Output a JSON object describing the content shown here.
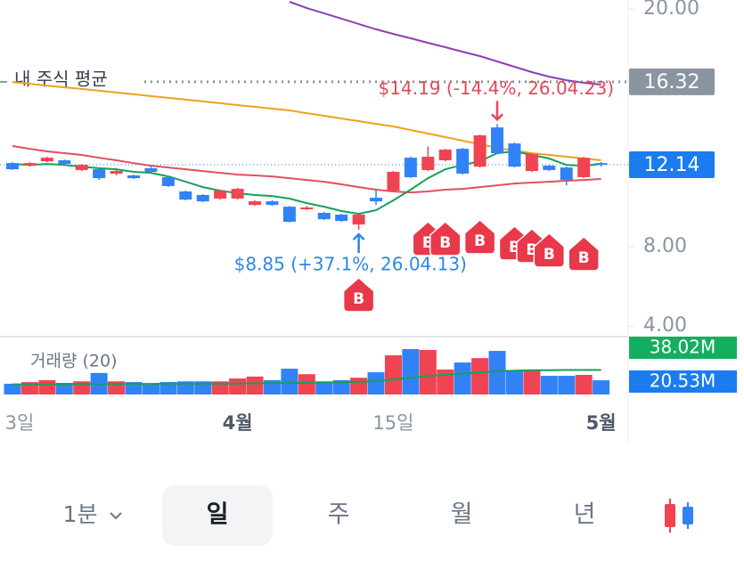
{
  "chart_data": {
    "type": "candlestick",
    "categories": [
      "3일",
      null,
      null,
      null,
      null,
      null,
      null,
      null,
      null,
      null,
      null,
      null,
      null,
      "4월",
      null,
      null,
      null,
      null,
      null,
      null,
      null,
      null,
      "15일",
      null,
      null,
      null,
      null,
      null,
      null,
      null,
      null,
      null,
      null,
      null,
      "5월"
    ],
    "open": [
      12.22,
      12.09,
      12.31,
      12.36,
      11.87,
      11.91,
      11.69,
      11.6,
      11.96,
      11.51,
      10.79,
      10.61,
      10.43,
      10.43,
      10.11,
      10.29,
      10.02,
      9.89,
      9.71,
      9.62,
      9.12,
      10.47,
      10.83,
      12.49,
      11.87,
      12.36,
      12.94,
      12.04,
      14.02,
      13.21,
      11.82,
      12.09,
      12.0,
      11.51,
      12.22
    ],
    "high": [
      12.27,
      12.27,
      12.54,
      12.4,
      12.18,
      11.96,
      11.87,
      11.64,
      12.04,
      11.55,
      10.83,
      10.65,
      10.88,
      10.97,
      10.34,
      10.34,
      10.06,
      10.06,
      9.76,
      9.66,
      9.66,
      10.88,
      11.82,
      12.54,
      13.06,
      12.94,
      12.99,
      13.66,
      14.19,
      13.26,
      12.72,
      12.13,
      12.04,
      12.54,
      12.27
    ],
    "low": [
      11.87,
      12.04,
      12.27,
      12.13,
      11.82,
      11.37,
      11.6,
      11.42,
      11.73,
      11.01,
      10.34,
      10.25,
      10.38,
      10.38,
      10.06,
      10.06,
      9.22,
      9.85,
      9.35,
      9.26,
      8.85,
      10.11,
      10.79,
      11.46,
      11.82,
      12.31,
      11.64,
      12.0,
      12.67,
      12.0,
      11.78,
      11.82,
      11.1,
      11.46,
      12.04
    ],
    "close": [
      11.91,
      12.22,
      12.49,
      12.18,
      12.13,
      11.46,
      11.82,
      11.46,
      11.78,
      11.06,
      10.38,
      10.29,
      10.83,
      10.92,
      10.29,
      10.11,
      9.26,
      9.98,
      9.39,
      9.3,
      9.62,
      10.29,
      11.78,
      11.51,
      12.54,
      12.9,
      11.69,
      13.62,
      12.72,
      12.04,
      12.67,
      11.87,
      11.37,
      12.49,
      12.14
    ],
    "up_color": "#f04452",
    "down_color": "#3182f6",
    "ylim": [
      3.6,
      20.45
    ],
    "yticks": [
      {
        "value": 4,
        "label": "4.00"
      },
      {
        "value": 8,
        "label": "8.00"
      },
      {
        "value": 20,
        "label": "20.00"
      }
    ],
    "moving_averages": [
      {
        "color": "#8e3fb4",
        "values": [
          null,
          null,
          null,
          null,
          null,
          null,
          null,
          null,
          null,
          null,
          null,
          null,
          null,
          null,
          null,
          null,
          20.36,
          20.04,
          19.78,
          19.51,
          19.24,
          18.97,
          18.74,
          18.52,
          18.29,
          18.07,
          17.84,
          17.62,
          17.35,
          17.08,
          16.81,
          16.58,
          16.4,
          16.27,
          16.18
        ]
      },
      {
        "color": "#f0a020",
        "values": [
          16.31,
          16.22,
          16.13,
          16.04,
          15.96,
          15.87,
          15.78,
          15.69,
          15.6,
          15.51,
          15.42,
          15.33,
          15.24,
          15.15,
          15.06,
          14.97,
          14.88,
          14.74,
          14.61,
          14.47,
          14.34,
          14.2,
          14.07,
          13.89,
          13.71,
          13.53,
          13.35,
          13.17,
          12.99,
          12.85,
          12.72,
          12.63,
          12.54,
          12.45,
          12.36
        ]
      },
      {
        "color": "#e0505f",
        "values": [
          13.08,
          12.94,
          12.81,
          12.72,
          12.63,
          12.49,
          12.36,
          12.22,
          12.09,
          12.0,
          11.91,
          11.82,
          11.73,
          11.64,
          11.6,
          11.55,
          11.46,
          11.37,
          11.28,
          11.15,
          11.01,
          10.88,
          10.79,
          10.74,
          10.79,
          10.88,
          10.92,
          11.01,
          11.1,
          11.19,
          11.24,
          11.28,
          11.33,
          11.37,
          11.42
        ]
      },
      {
        "color": "#17a05a",
        "values": [
          12.18,
          12.13,
          12.18,
          12.13,
          12.04,
          11.96,
          11.91,
          11.78,
          11.73,
          11.55,
          11.28,
          11.01,
          10.83,
          10.7,
          10.61,
          10.56,
          10.43,
          10.2,
          10.02,
          9.8,
          9.66,
          9.84,
          10.34,
          10.88,
          11.46,
          11.91,
          12.13,
          12.31,
          12.72,
          12.81,
          12.63,
          12.45,
          12.13,
          12.09,
          12.18
        ]
      }
    ],
    "average_price": {
      "name": "내 주식 평균",
      "value": 16.32,
      "label": "16.32",
      "color": "#8b95a1"
    },
    "last_price": {
      "value": 12.14,
      "label": "12.14",
      "color": "#1b7cf0"
    },
    "annotations": [
      {
        "text": "$14.19 (-14.4%, 26.04.23)",
        "index": 28,
        "value": 14.19,
        "color": "#e2495a"
      },
      {
        "text": "$8.85 (+37.1%, 26.04.13)",
        "index": 20,
        "value": 8.85,
        "color": "#2f86e6"
      }
    ],
    "buy_markers": [
      {
        "index": 20,
        "label": "B"
      },
      {
        "index": 24,
        "label": "B"
      },
      {
        "index": 25,
        "label": "B"
      },
      {
        "index": 27,
        "label": "B"
      },
      {
        "index": 29,
        "label": "B"
      },
      {
        "index": 30,
        "label": "B"
      },
      {
        "index": 31,
        "label": "B"
      },
      {
        "index": 33,
        "label": "B"
      }
    ],
    "volume": {
      "title": "거래량 (20)",
      "ylim": [
        0,
        47
      ],
      "values": [
        9,
        10.4,
        12,
        9.7,
        11,
        18,
        11,
        10.4,
        9,
        10.4,
        11,
        11,
        11,
        13.4,
        15,
        12,
        21.6,
        17,
        11,
        12,
        14,
        18.6,
        32.8,
        38.02,
        37.3,
        20.9,
        26.8,
        30.5,
        36.5,
        20,
        20,
        15.6,
        15.6,
        16.4,
        11.9
      ],
      "ma_color": "#17a05a",
      "ma": [
        8.5,
        8.5,
        8.6,
        8.6,
        8.7,
        8.8,
        8.8,
        8.9,
        8.9,
        9,
        9,
        9,
        9.1,
        9.2,
        9.3,
        9.4,
        9.6,
        9.8,
        10,
        10.2,
        10.5,
        11.2,
        12.5,
        14,
        15.5,
        16.5,
        17.5,
        18.5,
        19.5,
        20,
        20.3,
        20.4,
        20.5,
        20.5,
        20.53
      ],
      "badges": [
        {
          "value": 38.02,
          "label": "38.02M",
          "color": "#12b05e"
        },
        {
          "value": 20.53,
          "label": "20.53M",
          "color": "#1b7cf0"
        }
      ]
    }
  },
  "ui": {
    "interval": "1분",
    "tabs": [
      "일",
      "주",
      "월",
      "년"
    ],
    "selected": 0
  }
}
